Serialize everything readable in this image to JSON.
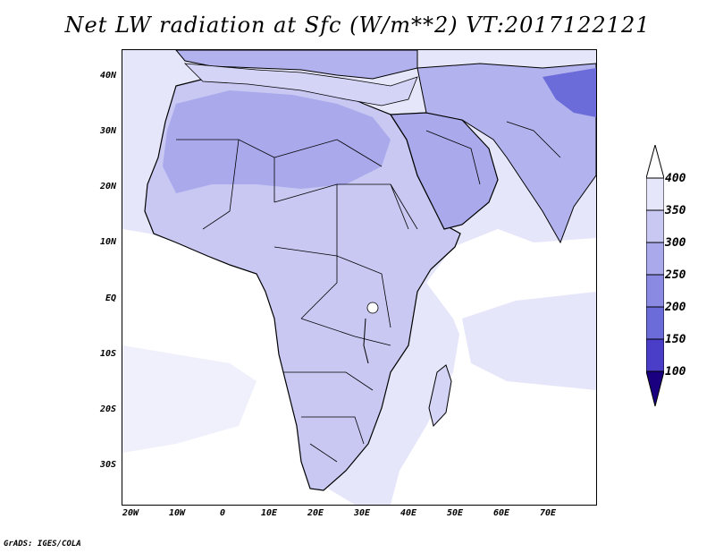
{
  "title": "Net LW radiation at Sfc (W/m**2) VT:2017122121",
  "credit": "GrADS: IGES/COLA",
  "lat_labels": [
    "40N",
    "30N",
    "20N",
    "10N",
    "EQ",
    "10S",
    "20S",
    "30S"
  ],
  "lon_labels": [
    "20W",
    "10W",
    "0",
    "10E",
    "20E",
    "30E",
    "40E",
    "50E",
    "60E",
    "70E"
  ],
  "colorbar": {
    "labels": [
      "400",
      "350",
      "300",
      "250",
      "200",
      "150",
      "100"
    ],
    "colors": [
      "#ffffff",
      "#e6e6fb",
      "#c8c8f3",
      "#a9a9ec",
      "#8a8ae2",
      "#6b6bd9",
      "#4a3ec9",
      "#2a12a8",
      "#1a0080"
    ]
  },
  "map_colors": {
    "ocean": "#ffffff",
    "land_light": "#d4d4f6",
    "land_mid": "#b2b2ee",
    "land_dark": "#8f8fe0",
    "sea_mid": "#e6e6fb"
  }
}
